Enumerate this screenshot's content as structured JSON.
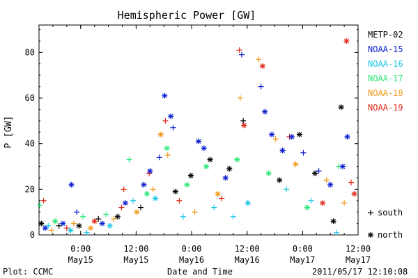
{
  "chart_data": {
    "type": "scatter",
    "title": "Hemispheric Power [GW]",
    "ylabel": "P [GW]",
    "xlabel": "Date and Time",
    "ylim": [
      0,
      92
    ],
    "xlim_hours": [
      -15,
      12
    ],
    "y_ticks": [
      0,
      20,
      40,
      60,
      80
    ],
    "x_ticks": [
      {
        "top": "0:00",
        "bottom": "May15"
      },
      {
        "top": "12:00",
        "bottom": "May15"
      },
      {
        "top": "0:00",
        "bottom": "May16"
      },
      {
        "top": "12:00",
        "bottom": "May16"
      },
      {
        "top": "0:00",
        "bottom": "May17"
      },
      {
        "top": "12:00",
        "bottom": "May17"
      }
    ],
    "x_tick_dates": [
      "2011-05-15T00:00",
      "2011-05-15T12:00",
      "2011-05-16T00:00",
      "2011-05-16T12:00",
      "2011-05-17T00:00",
      "2011-05-17T12:00"
    ],
    "x_axis_start": "2011-05-14T15:00",
    "x_axis_end": "2011-05-17T12:00",
    "series": [
      {
        "name": "METP-02",
        "color": "#000000"
      },
      {
        "name": "NOAA-15",
        "color": "#0a1fd0"
      },
      {
        "name": "NOAA-16",
        "color": "#1ec8e6"
      },
      {
        "name": "NOAA-17",
        "color": "#2ee87a"
      },
      {
        "name": "NOAA-18",
        "color": "#f29a1c"
      },
      {
        "name": "NOAA-19",
        "color": "#e22a1a"
      }
    ],
    "marker_legend": [
      {
        "symbol": "+",
        "label": "south"
      },
      {
        "symbol": "*",
        "label": "north"
      }
    ],
    "points": [
      {
        "series": "NOAA-19",
        "x": "2011-05-14T16:00",
        "y": 15,
        "m": "+"
      },
      {
        "series": "NOAA-17",
        "x": "2011-05-14T15:10",
        "y": 13,
        "m": "+"
      },
      {
        "series": "METP-02",
        "x": "2011-05-14T15:30",
        "y": 5,
        "m": "*"
      },
      {
        "series": "NOAA-15",
        "x": "2011-05-14T16:20",
        "y": 3,
        "m": "*"
      },
      {
        "series": "NOAA-16",
        "x": "2011-05-14T17:00",
        "y": 4,
        "m": "+"
      },
      {
        "series": "NOAA-18",
        "x": "2011-05-14T17:40",
        "y": 2,
        "m": "+"
      },
      {
        "series": "NOAA-17",
        "x": "2011-05-14T18:30",
        "y": 6,
        "m": "*"
      },
      {
        "series": "METP-02",
        "x": "2011-05-14T19:20",
        "y": 4,
        "m": "+"
      },
      {
        "series": "NOAA-15",
        "x": "2011-05-14T20:10",
        "y": 5,
        "m": "*"
      },
      {
        "series": "NOAA-19",
        "x": "2011-05-14T21:00",
        "y": 3,
        "m": "+"
      },
      {
        "series": "NOAA-16",
        "x": "2011-05-14T21:50",
        "y": 2,
        "m": "*"
      },
      {
        "series": "NOAA-18",
        "x": "2011-05-14T22:30",
        "y": 5,
        "m": "+"
      },
      {
        "series": "NOAA-15",
        "x": "2011-05-14T23:10",
        "y": 10,
        "m": "+"
      },
      {
        "series": "NOAA-15",
        "x": "2011-05-14T22:00",
        "y": 22,
        "m": "*"
      },
      {
        "series": "METP-02",
        "x": "2011-05-14T23:40",
        "y": 4,
        "m": "*"
      },
      {
        "series": "NOAA-17",
        "x": "2011-05-15T00:30",
        "y": 8,
        "m": "+"
      },
      {
        "series": "NOAA-16",
        "x": "2011-05-15T01:20",
        "y": 1,
        "m": "+"
      },
      {
        "series": "NOAA-18",
        "x": "2011-05-15T02:10",
        "y": 3,
        "m": "*"
      },
      {
        "series": "NOAA-19",
        "x": "2011-05-15T03:00",
        "y": 6,
        "m": "*"
      },
      {
        "series": "METP-02",
        "x": "2011-05-15T03:50",
        "y": 7,
        "m": "+"
      },
      {
        "series": "NOAA-15",
        "x": "2011-05-15T04:40",
        "y": 5,
        "m": "*"
      },
      {
        "series": "NOAA-17",
        "x": "2011-05-15T05:30",
        "y": 9,
        "m": "+"
      },
      {
        "series": "NOAA-16",
        "x": "2011-05-15T06:20",
        "y": 4,
        "m": "*"
      },
      {
        "series": "NOAA-18",
        "x": "2011-05-15T07:10",
        "y": 7,
        "m": "+"
      },
      {
        "series": "METP-02",
        "x": "2011-05-15T08:00",
        "y": 8,
        "m": "*"
      },
      {
        "series": "NOAA-19",
        "x": "2011-05-15T08:50",
        "y": 12,
        "m": "+"
      },
      {
        "series": "NOAA-19",
        "x": "2011-05-15T09:20",
        "y": 20,
        "m": "+"
      },
      {
        "series": "NOAA-15",
        "x": "2011-05-15T09:40",
        "y": 14,
        "m": "*"
      },
      {
        "series": "NOAA-17",
        "x": "2011-05-15T10:30",
        "y": 33,
        "m": "+"
      },
      {
        "series": "NOAA-16",
        "x": "2011-05-15T11:20",
        "y": 15,
        "m": "+"
      },
      {
        "series": "NOAA-18",
        "x": "2011-05-15T12:10",
        "y": 10,
        "m": "*"
      },
      {
        "series": "METP-02",
        "x": "2011-05-15T13:00",
        "y": 12,
        "m": "+"
      },
      {
        "series": "NOAA-15",
        "x": "2011-05-15T13:40",
        "y": 22,
        "m": "*"
      },
      {
        "series": "NOAA-17",
        "x": "2011-05-15T14:20",
        "y": 18,
        "m": "*"
      },
      {
        "series": "NOAA-19",
        "x": "2011-05-15T14:50",
        "y": 27,
        "m": "+"
      },
      {
        "series": "NOAA-15",
        "x": "2011-05-15T15:00",
        "y": 28,
        "m": "*"
      },
      {
        "series": "NOAA-18",
        "x": "2011-05-15T15:40",
        "y": 20,
        "m": "+"
      },
      {
        "series": "NOAA-16",
        "x": "2011-05-15T16:10",
        "y": 16,
        "m": "*"
      },
      {
        "series": "NOAA-15",
        "x": "2011-05-15T17:00",
        "y": 34,
        "m": "+"
      },
      {
        "series": "NOAA-18",
        "x": "2011-05-15T17:20",
        "y": 44,
        "m": "*"
      },
      {
        "series": "NOAA-15",
        "x": "2011-05-15T18:10",
        "y": 61,
        "m": "*"
      },
      {
        "series": "NOAA-17",
        "x": "2011-05-15T18:40",
        "y": 38,
        "m": "*"
      },
      {
        "series": "NOAA-18",
        "x": "2011-05-15T18:50",
        "y": 35,
        "m": "+"
      },
      {
        "series": "NOAA-15",
        "x": "2011-05-15T19:30",
        "y": 52,
        "m": "*"
      },
      {
        "series": "NOAA-19",
        "x": "2011-05-15T18:20",
        "y": 50,
        "m": "+"
      },
      {
        "series": "NOAA-15",
        "x": "2011-05-15T20:00",
        "y": 47,
        "m": "+"
      },
      {
        "series": "METP-02",
        "x": "2011-05-15T20:30",
        "y": 19,
        "m": "*"
      },
      {
        "series": "NOAA-19",
        "x": "2011-05-15T21:20",
        "y": 15,
        "m": "+"
      },
      {
        "series": "NOAA-16",
        "x": "2011-05-15T22:10",
        "y": 8,
        "m": "+"
      },
      {
        "series": "NOAA-17",
        "x": "2011-05-15T23:00",
        "y": 22,
        "m": "*"
      },
      {
        "series": "METP-02",
        "x": "2011-05-15T23:50",
        "y": 26,
        "m": "*"
      },
      {
        "series": "NOAA-18",
        "x": "2011-05-16T00:40",
        "y": 10,
        "m": "+"
      },
      {
        "series": "NOAA-15",
        "x": "2011-05-16T01:30",
        "y": 41,
        "m": "*"
      },
      {
        "series": "NOAA-15",
        "x": "2011-05-16T02:40",
        "y": 38,
        "m": "*"
      },
      {
        "series": "NOAA-17",
        "x": "2011-05-16T03:10",
        "y": 30,
        "m": "*"
      },
      {
        "series": "METP-02",
        "x": "2011-05-16T04:00",
        "y": 33,
        "m": "*"
      },
      {
        "series": "NOAA-16",
        "x": "2011-05-16T04:50",
        "y": 12,
        "m": "+"
      },
      {
        "series": "NOAA-18",
        "x": "2011-05-16T05:40",
        "y": 18,
        "m": "*"
      },
      {
        "series": "NOAA-19",
        "x": "2011-05-16T06:30",
        "y": 16,
        "m": "+"
      },
      {
        "series": "NOAA-15",
        "x": "2011-05-16T07:20",
        "y": 25,
        "m": "*"
      },
      {
        "series": "METP-02",
        "x": "2011-05-16T08:10",
        "y": 29,
        "m": "*"
      },
      {
        "series": "NOAA-16",
        "x": "2011-05-16T09:00",
        "y": 8,
        "m": "+"
      },
      {
        "series": "NOAA-17",
        "x": "2011-05-16T09:50",
        "y": 33,
        "m": "*"
      },
      {
        "series": "NOAA-19",
        "x": "2011-05-16T10:20",
        "y": 81,
        "m": "+"
      },
      {
        "series": "NOAA-15",
        "x": "2011-05-16T10:50",
        "y": 79,
        "m": "+"
      },
      {
        "series": "METP-02",
        "x": "2011-05-16T11:10",
        "y": 50,
        "m": "+"
      },
      {
        "series": "NOAA-19",
        "x": "2011-05-16T11:20",
        "y": 48,
        "m": "*"
      },
      {
        "series": "NOAA-18",
        "x": "2011-05-16T10:30",
        "y": 60,
        "m": "+"
      },
      {
        "series": "NOAA-16",
        "x": "2011-05-16T12:10",
        "y": 14,
        "m": "*"
      },
      {
        "series": "NOAA-18",
        "x": "2011-05-16T14:30",
        "y": 77,
        "m": "+"
      },
      {
        "series": "NOAA-19",
        "x": "2011-05-16T15:20",
        "y": 74,
        "m": "*"
      },
      {
        "series": "NOAA-15",
        "x": "2011-05-16T15:00",
        "y": 65,
        "m": "+"
      },
      {
        "series": "NOAA-15",
        "x": "2011-05-16T15:50",
        "y": 54,
        "m": "*"
      },
      {
        "series": "NOAA-17",
        "x": "2011-05-16T16:40",
        "y": 27,
        "m": "*"
      },
      {
        "series": "NOAA-15",
        "x": "2011-05-16T17:20",
        "y": 44,
        "m": "*"
      },
      {
        "series": "NOAA-18",
        "x": "2011-05-16T18:10",
        "y": 42,
        "m": "+"
      },
      {
        "series": "METP-02",
        "x": "2011-05-16T19:00",
        "y": 24,
        "m": "*"
      },
      {
        "series": "NOAA-15",
        "x": "2011-05-16T19:40",
        "y": 37,
        "m": "*"
      },
      {
        "series": "NOAA-16",
        "x": "2011-05-16T20:30",
        "y": 20,
        "m": "+"
      },
      {
        "series": "NOAA-19",
        "x": "2011-05-16T21:10",
        "y": 43,
        "m": "+"
      },
      {
        "series": "NOAA-15",
        "x": "2011-05-16T21:40",
        "y": 43,
        "m": "*"
      },
      {
        "series": "NOAA-18",
        "x": "2011-05-16T22:30",
        "y": 31,
        "m": "*"
      },
      {
        "series": "METP-02",
        "x": "2011-05-16T23:20",
        "y": 44,
        "m": "*"
      },
      {
        "series": "NOAA-15",
        "x": "2011-05-17T00:10",
        "y": 36,
        "m": "+"
      },
      {
        "series": "NOAA-17",
        "x": "2011-05-17T01:00",
        "y": 12,
        "m": "*"
      },
      {
        "series": "NOAA-16",
        "x": "2011-05-17T01:50",
        "y": 15,
        "m": "+"
      },
      {
        "series": "METP-02",
        "x": "2011-05-17T02:40",
        "y": 27,
        "m": "*"
      },
      {
        "series": "NOAA-15",
        "x": "2011-05-17T03:30",
        "y": 28,
        "m": "+"
      },
      {
        "series": "NOAA-19",
        "x": "2011-05-17T04:20",
        "y": 14,
        "m": "*"
      },
      {
        "series": "NOAA-18",
        "x": "2011-05-17T05:10",
        "y": 24,
        "m": "+"
      },
      {
        "series": "NOAA-15",
        "x": "2011-05-17T06:00",
        "y": 22,
        "m": "*"
      },
      {
        "series": "METP-02",
        "x": "2011-05-17T06:40",
        "y": 6,
        "m": "*"
      },
      {
        "series": "NOAA-16",
        "x": "2011-05-17T07:20",
        "y": 1,
        "m": "+"
      },
      {
        "series": "NOAA-17",
        "x": "2011-05-17T07:50",
        "y": 30,
        "m": "+"
      },
      {
        "series": "METP-02",
        "x": "2011-05-17T08:20",
        "y": 56,
        "m": "*"
      },
      {
        "series": "NOAA-15",
        "x": "2011-05-17T08:40",
        "y": 30,
        "m": "*"
      },
      {
        "series": "NOAA-18",
        "x": "2011-05-17T09:00",
        "y": 14,
        "m": "+"
      },
      {
        "series": "NOAA-15",
        "x": "2011-05-17T09:40",
        "y": 43,
        "m": "*"
      },
      {
        "series": "NOAA-19",
        "x": "2011-05-17T09:30",
        "y": 85,
        "m": "*"
      },
      {
        "series": "NOAA-19",
        "x": "2011-05-17T10:30",
        "y": 23,
        "m": "+"
      },
      {
        "series": "NOAA-19",
        "x": "2011-05-17T11:10",
        "y": 18,
        "m": "*"
      }
    ]
  },
  "footer": {
    "plot_label": "Plot: CCMC",
    "timestamp": "2011/05/17 12:10:08"
  }
}
